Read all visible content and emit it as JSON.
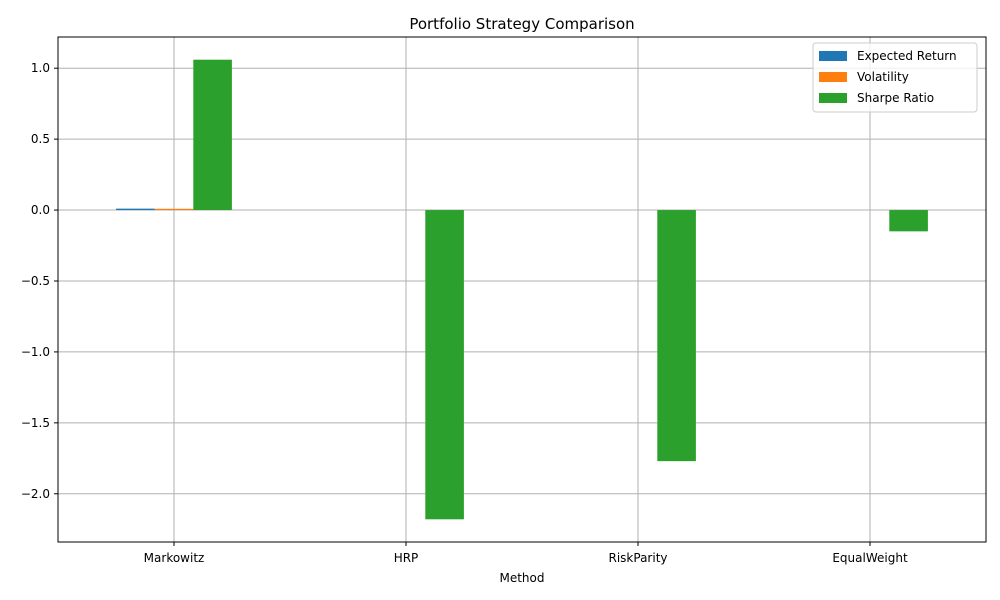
{
  "chart_data": {
    "type": "bar",
    "title": "Portfolio Strategy Comparison",
    "xlabel": "Method",
    "ylabel": "",
    "categories": [
      "Markowitz",
      "HRP",
      "RiskParity",
      "EqualWeight"
    ],
    "series": [
      {
        "name": "Expected Return",
        "color": "#1f77b4",
        "values": [
          0.01,
          0.0,
          0.0,
          0.0
        ]
      },
      {
        "name": "Volatility",
        "color": "#ff7f0e",
        "values": [
          0.009,
          0.0,
          0.0,
          0.0
        ]
      },
      {
        "name": "Sharpe Ratio",
        "color": "#2ca02c",
        "values": [
          1.06,
          -2.18,
          -1.77,
          -0.15
        ]
      }
    ],
    "ylim": [
      -2.34,
      1.22
    ],
    "yticks": [
      1.0,
      0.5,
      0.0,
      -0.5,
      -1.0,
      -1.5,
      -2.0
    ],
    "ytick_labels": [
      "1.0",
      "0.5",
      "0.0",
      "−0.5",
      "−1.0",
      "−1.5",
      "−2.0"
    ],
    "grid": true,
    "legend_position": "top-right"
  }
}
